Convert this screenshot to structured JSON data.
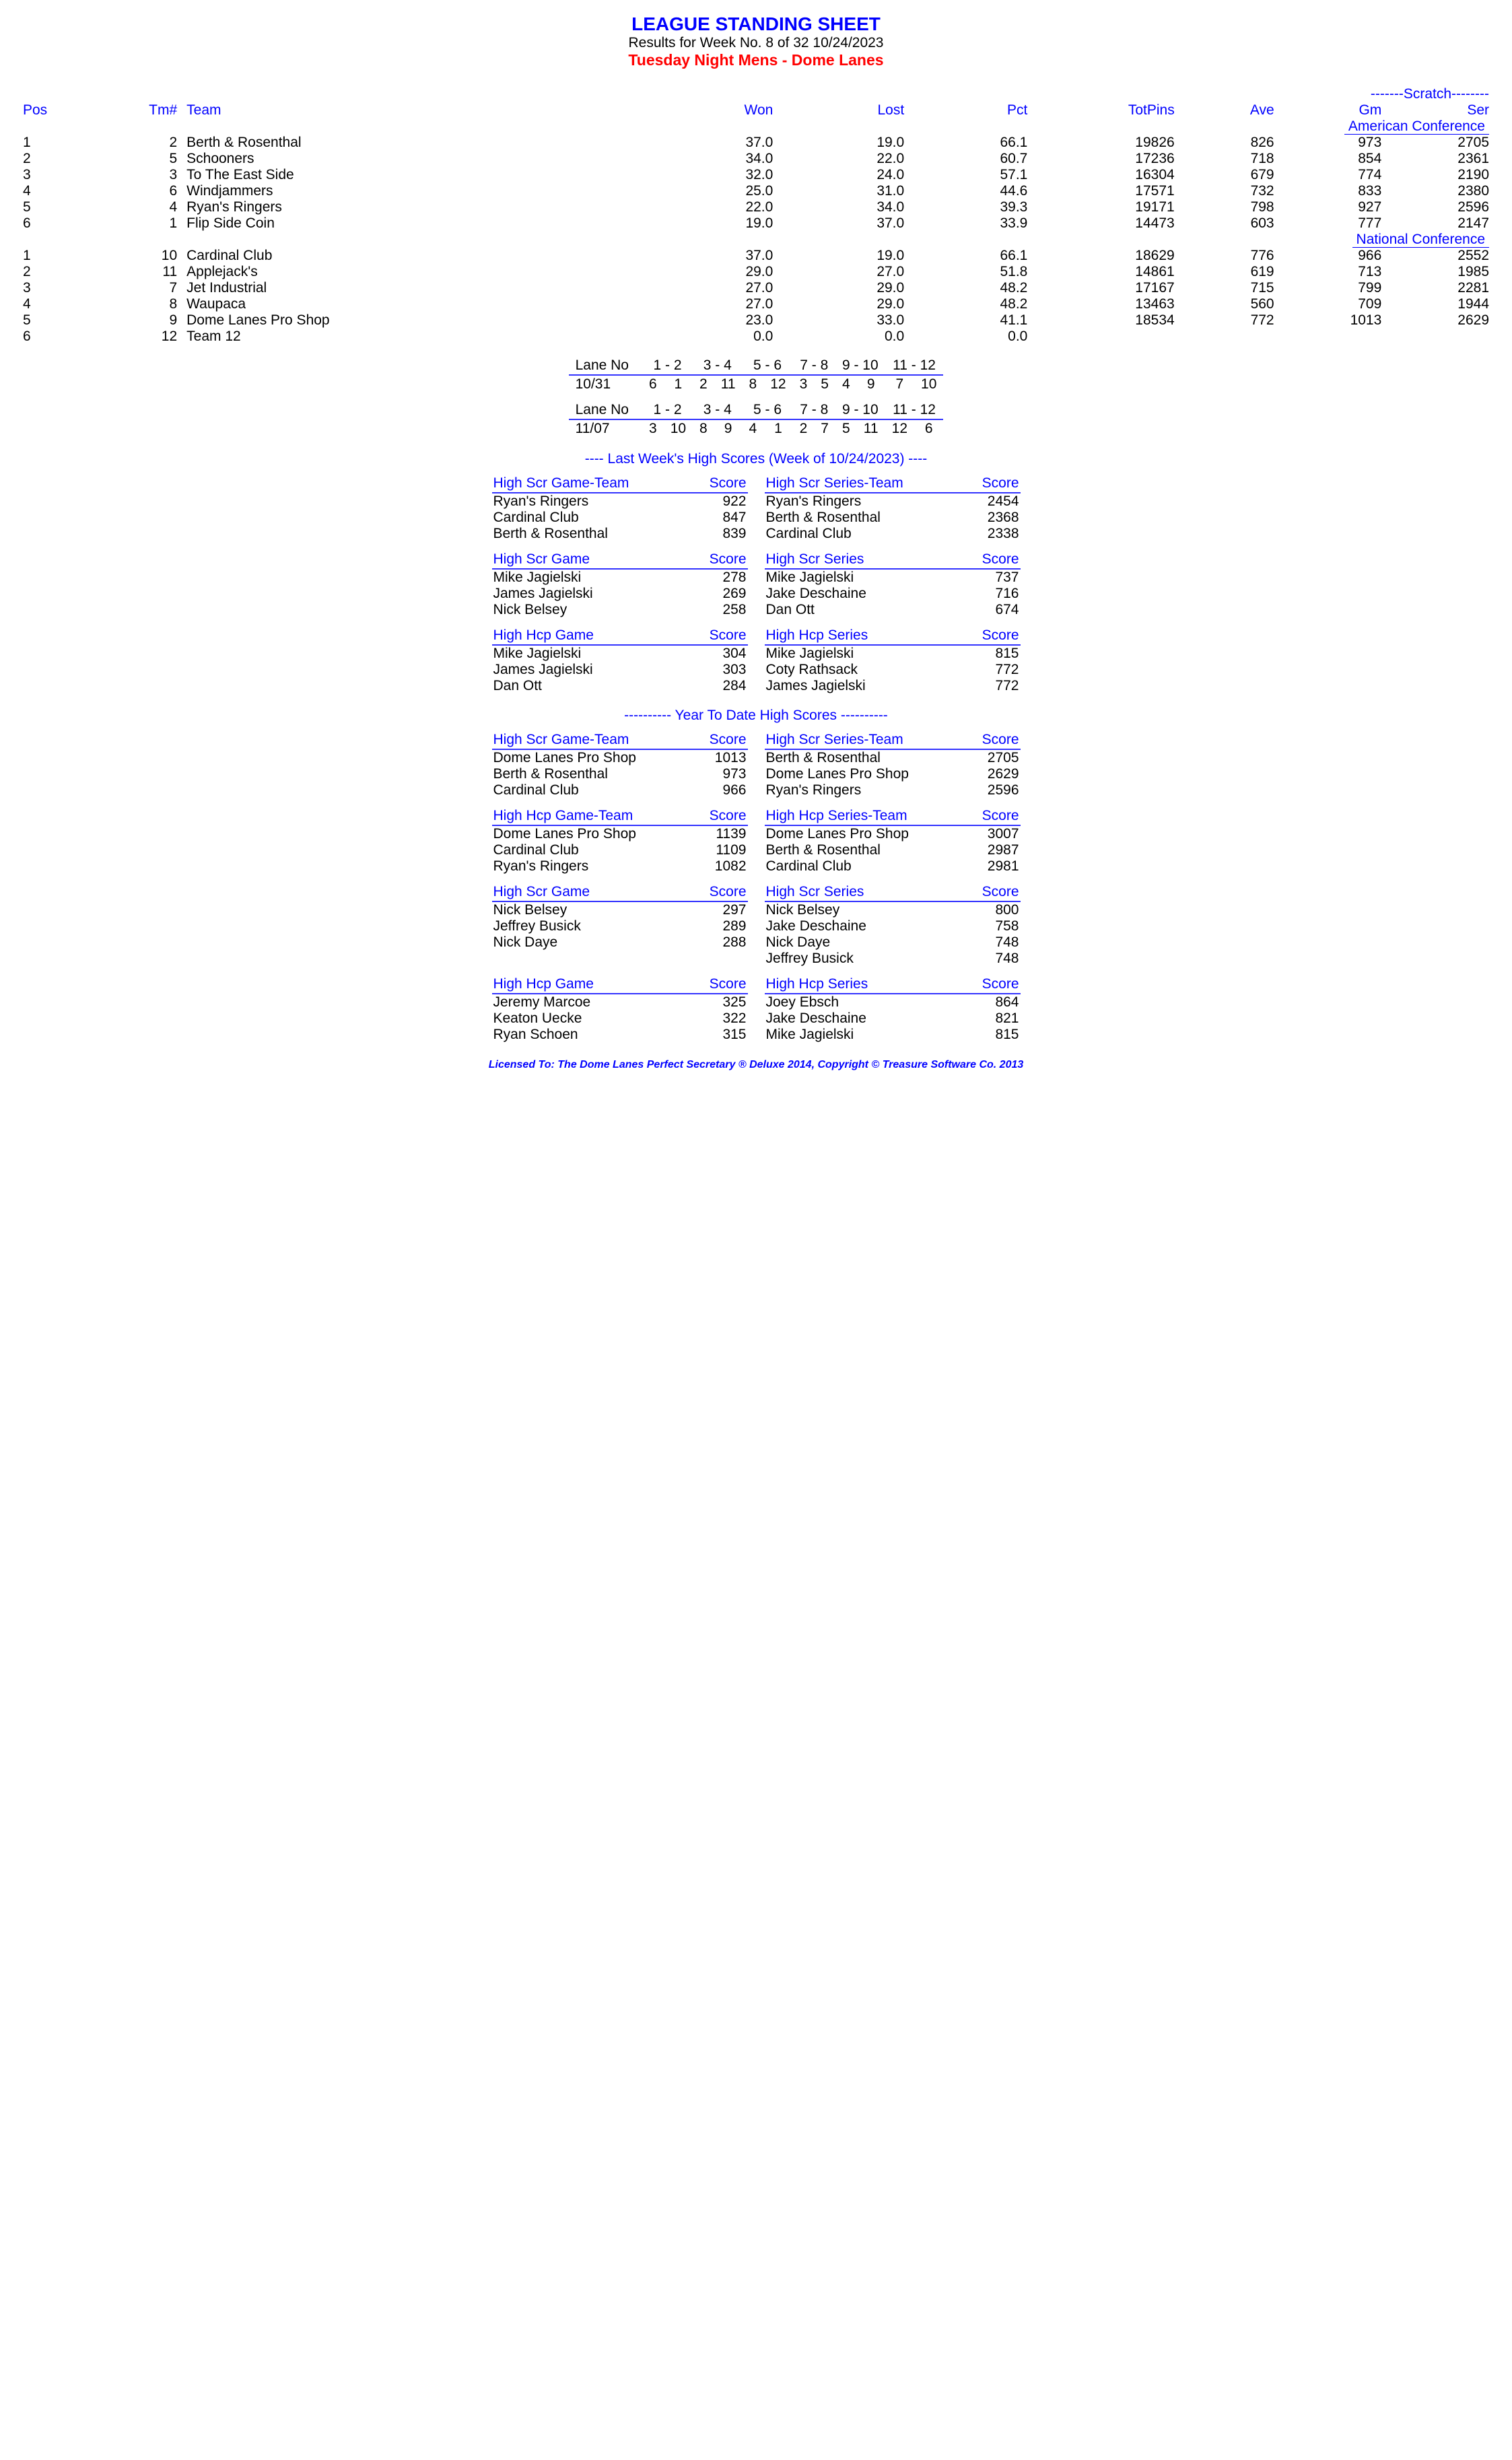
{
  "header": {
    "title": "LEAGUE STANDING SHEET",
    "subtitle": "Results for Week No. 8 of 32    10/24/2023",
    "league": "Tuesday Night Mens - Dome Lanes"
  },
  "standings": {
    "scratch_hdr": "-------Scratch--------",
    "cols": [
      "Pos",
      "Tm#",
      "Team",
      "Won",
      "Lost",
      "Pct",
      "TotPins",
      "Ave",
      "Gm",
      "Ser"
    ],
    "conferences": [
      {
        "name": "American Conference",
        "rows": [
          {
            "pos": "1",
            "tm": "2",
            "team": "Berth & Rosenthal",
            "won": "37.0",
            "lost": "19.0",
            "pct": "66.1",
            "tp": "19826",
            "ave": "826",
            "gm": "973",
            "ser": "2705"
          },
          {
            "pos": "2",
            "tm": "5",
            "team": "Schooners",
            "won": "34.0",
            "lost": "22.0",
            "pct": "60.7",
            "tp": "17236",
            "ave": "718",
            "gm": "854",
            "ser": "2361"
          },
          {
            "pos": "3",
            "tm": "3",
            "team": "To The East Side",
            "won": "32.0",
            "lost": "24.0",
            "pct": "57.1",
            "tp": "16304",
            "ave": "679",
            "gm": "774",
            "ser": "2190"
          },
          {
            "pos": "4",
            "tm": "6",
            "team": "Windjammers",
            "won": "25.0",
            "lost": "31.0",
            "pct": "44.6",
            "tp": "17571",
            "ave": "732",
            "gm": "833",
            "ser": "2380"
          },
          {
            "pos": "5",
            "tm": "4",
            "team": "Ryan's Ringers",
            "won": "22.0",
            "lost": "34.0",
            "pct": "39.3",
            "tp": "19171",
            "ave": "798",
            "gm": "927",
            "ser": "2596"
          },
          {
            "pos": "6",
            "tm": "1",
            "team": "Flip Side Coin",
            "won": "19.0",
            "lost": "37.0",
            "pct": "33.9",
            "tp": "14473",
            "ave": "603",
            "gm": "777",
            "ser": "2147"
          }
        ]
      },
      {
        "name": "National Conference",
        "rows": [
          {
            "pos": "1",
            "tm": "10",
            "team": "Cardinal Club",
            "won": "37.0",
            "lost": "19.0",
            "pct": "66.1",
            "tp": "18629",
            "ave": "776",
            "gm": "966",
            "ser": "2552"
          },
          {
            "pos": "2",
            "tm": "11",
            "team": "Applejack's",
            "won": "29.0",
            "lost": "27.0",
            "pct": "51.8",
            "tp": "14861",
            "ave": "619",
            "gm": "713",
            "ser": "1985"
          },
          {
            "pos": "3",
            "tm": "7",
            "team": "Jet Industrial",
            "won": "27.0",
            "lost": "29.0",
            "pct": "48.2",
            "tp": "17167",
            "ave": "715",
            "gm": "799",
            "ser": "2281"
          },
          {
            "pos": "4",
            "tm": "8",
            "team": "Waupaca",
            "won": "27.0",
            "lost": "29.0",
            "pct": "48.2",
            "tp": "13463",
            "ave": "560",
            "gm": "709",
            "ser": "1944"
          },
          {
            "pos": "5",
            "tm": "9",
            "team": "Dome Lanes Pro Shop",
            "won": "23.0",
            "lost": "33.0",
            "pct": "41.1",
            "tp": "18534",
            "ave": "772",
            "gm": "1013",
            "ser": "2629"
          },
          {
            "pos": "6",
            "tm": "12",
            "team": "Team 12",
            "won": "0.0",
            "lost": "0.0",
            "pct": "0.0",
            "tp": "",
            "ave": "",
            "gm": "",
            "ser": ""
          }
        ]
      }
    ]
  },
  "schedule": [
    {
      "lane_label": "Lane No",
      "lanes": [
        "1 - 2",
        "3 - 4",
        "5 - 6",
        "7 - 8",
        "9 - 10",
        "11 - 12"
      ],
      "date": "10/31",
      "assign": [
        [
          "6",
          "1"
        ],
        [
          "2",
          "11"
        ],
        [
          "8",
          "12"
        ],
        [
          "3",
          "5"
        ],
        [
          "4",
          "9"
        ],
        [
          "7",
          "10"
        ]
      ]
    },
    {
      "lane_label": "Lane No",
      "lanes": [
        "1 - 2",
        "3 - 4",
        "5 - 6",
        "7 - 8",
        "9 - 10",
        "11 - 12"
      ],
      "date": "11/07",
      "assign": [
        [
          "3",
          "10"
        ],
        [
          "8",
          "9"
        ],
        [
          "4",
          "1"
        ],
        [
          "2",
          "7"
        ],
        [
          "5",
          "11"
        ],
        [
          "12",
          "6"
        ]
      ]
    }
  ],
  "last_week": {
    "title": "----  Last Week's High Scores   (Week of 10/24/2023)  ----",
    "blocks": [
      {
        "left": {
          "h": "High Scr Game-Team",
          "s": "Score",
          "rows": [
            [
              "Ryan's Ringers",
              "922"
            ],
            [
              "Cardinal Club",
              "847"
            ],
            [
              "Berth & Rosenthal",
              "839"
            ]
          ]
        },
        "right": {
          "h": "High Scr Series-Team",
          "s": "Score",
          "rows": [
            [
              "Ryan's Ringers",
              "2454"
            ],
            [
              "Berth & Rosenthal",
              "2368"
            ],
            [
              "Cardinal Club",
              "2338"
            ]
          ]
        }
      },
      {
        "left": {
          "h": "High Scr Game",
          "s": "Score",
          "rows": [
            [
              "Mike Jagielski",
              "278"
            ],
            [
              "James Jagielski",
              "269"
            ],
            [
              "Nick Belsey",
              "258"
            ]
          ]
        },
        "right": {
          "h": "High Scr Series",
          "s": "Score",
          "rows": [
            [
              "Mike Jagielski",
              "737"
            ],
            [
              "Jake Deschaine",
              "716"
            ],
            [
              "Dan Ott",
              "674"
            ]
          ]
        }
      },
      {
        "left": {
          "h": "High Hcp Game",
          "s": "Score",
          "rows": [
            [
              "Mike Jagielski",
              "304"
            ],
            [
              "James Jagielski",
              "303"
            ],
            [
              "Dan Ott",
              "284"
            ]
          ]
        },
        "right": {
          "h": "High Hcp Series",
          "s": "Score",
          "rows": [
            [
              "Mike Jagielski",
              "815"
            ],
            [
              "Coty Rathsack",
              "772"
            ],
            [
              "James Jagielski",
              "772"
            ]
          ]
        }
      }
    ]
  },
  "ytd": {
    "title": "---------- Year To Date High Scores ----------",
    "blocks": [
      {
        "left": {
          "h": "High Scr Game-Team",
          "s": "Score",
          "rows": [
            [
              "Dome Lanes Pro Shop",
              "1013"
            ],
            [
              "Berth & Rosenthal",
              "973"
            ],
            [
              "Cardinal Club",
              "966"
            ]
          ]
        },
        "right": {
          "h": "High Scr Series-Team",
          "s": "Score",
          "rows": [
            [
              "Berth & Rosenthal",
              "2705"
            ],
            [
              "Dome Lanes Pro Shop",
              "2629"
            ],
            [
              "Ryan's Ringers",
              "2596"
            ]
          ]
        }
      },
      {
        "left": {
          "h": "High Hcp Game-Team",
          "s": "Score",
          "rows": [
            [
              "Dome Lanes Pro Shop",
              "1139"
            ],
            [
              "Cardinal Club",
              "1109"
            ],
            [
              "Ryan's Ringers",
              "1082"
            ]
          ]
        },
        "right": {
          "h": "High Hcp Series-Team",
          "s": "Score",
          "rows": [
            [
              "Dome Lanes Pro Shop",
              "3007"
            ],
            [
              "Berth & Rosenthal",
              "2987"
            ],
            [
              "Cardinal Club",
              "2981"
            ]
          ]
        }
      },
      {
        "left": {
          "h": "High Scr Game",
          "s": "Score",
          "rows": [
            [
              "Nick Belsey",
              "297"
            ],
            [
              "Jeffrey Busick",
              "289"
            ],
            [
              "Nick Daye",
              "288"
            ]
          ]
        },
        "right": {
          "h": "High Scr Series",
          "s": "Score",
          "rows": [
            [
              "Nick Belsey",
              "800"
            ],
            [
              "Jake Deschaine",
              "758"
            ],
            [
              "Nick Daye",
              "748"
            ],
            [
              "Jeffrey Busick",
              "748"
            ]
          ]
        }
      },
      {
        "left": {
          "h": "High Hcp Game",
          "s": "Score",
          "rows": [
            [
              "Jeremy Marcoe",
              "325"
            ],
            [
              "Keaton Uecke",
              "322"
            ],
            [
              "Ryan Schoen",
              "315"
            ]
          ]
        },
        "right": {
          "h": "High Hcp Series",
          "s": "Score",
          "rows": [
            [
              "Joey Ebsch",
              "864"
            ],
            [
              "Jake Deschaine",
              "821"
            ],
            [
              "Mike Jagielski",
              "815"
            ]
          ]
        }
      }
    ]
  },
  "footer": "Licensed To: The Dome Lanes    Perfect Secretary ® Deluxe  2014, Copyright © Treasure Software Co. 2013"
}
